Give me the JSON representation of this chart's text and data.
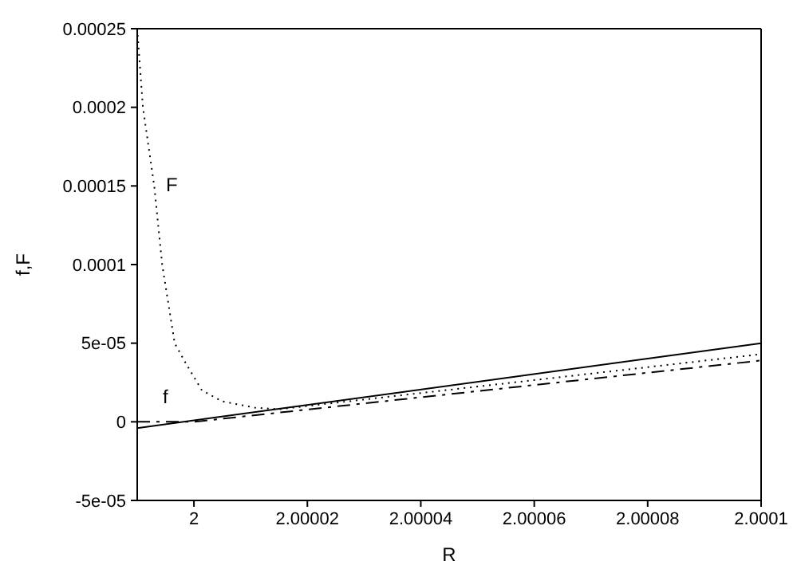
{
  "chart_data": {
    "type": "line",
    "xlabel": "R",
    "ylabel": "f,F",
    "xlim": [
      1.99999,
      2.0001
    ],
    "xticks": [
      2,
      2.00002,
      2.00004,
      2.00006,
      2.00008,
      2.0001
    ],
    "ylim": [
      -5e-05,
      0.00025
    ],
    "yticks": [
      {
        "value": -5e-05,
        "label": "-5e-05"
      },
      0,
      {
        "value": 5e-05,
        "label": "5e-05"
      },
      0.0001,
      0.00015,
      0.0002,
      0.00025
    ],
    "series": [
      {
        "color": "#000000",
        "line_style": "solid",
        "x": [
          1.99999,
          2.0001
        ],
        "values": [
          -4e-06,
          5e-05
        ]
      },
      {
        "color": "#000000",
        "line_style": "dashed",
        "x": [
          1.99999,
          2.0,
          2.0001
        ],
        "values": [
          0.0,
          0.0,
          3.9e-05
        ]
      },
      {
        "color": "#000000",
        "line_style": "dotted",
        "x": [
          1.99999,
          1.999991,
          1.999993,
          1.9999944,
          1.9999966,
          1.9999986,
          2.0000014,
          2.000005,
          2.0000107,
          2.000015,
          2.0001
        ],
        "values": [
          0.00025,
          0.0002,
          0.00015,
          0.0001,
          5e-05,
          3.7e-05,
          2e-05,
          1.3e-05,
          9e-06,
          8e-06,
          4.3e-05
        ]
      }
    ],
    "annotations": [
      "F",
      "f"
    ]
  }
}
